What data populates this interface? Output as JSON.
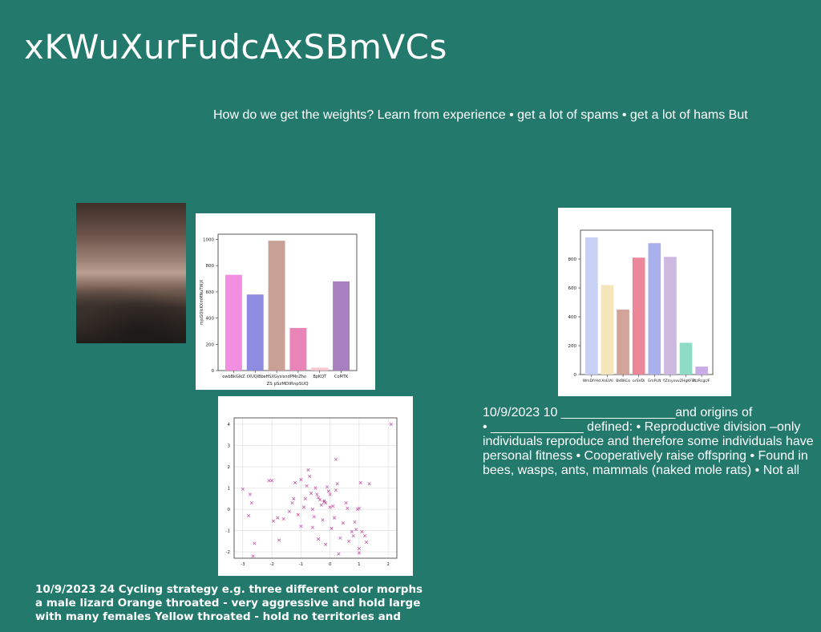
{
  "slide": {
    "title": "xKWuXurFudcAxSBmVCs",
    "subtitle": "How do we get the weights? Learn from experience • get a lot of spams • get a lot of hams But",
    "right_text": [
      "10/9/2023 10 ________________and origins of",
      "• _____________ defined: • Reproductive division –only",
      "individuals reproduce and therefore some individuals have",
      "personal fitness • Cooperatively raise offspring • Found in",
      "bees, wasps, ants, mammals (naked mole rats) • Not all"
    ],
    "bottom_text": [
      "10/9/2023 24 Cycling strategy e.g. three different color morphs",
      "a male lizard Orange throated - very aggressive and hold large",
      "with many females Yellow throated - hold no territories and"
    ]
  },
  "chart_data": [
    {
      "type": "bar",
      "categories": [
        "owbBkGikZ",
        "tXUQiBb",
        "eHSXGysisnd",
        "PMnZho",
        "BpKQT",
        "CoMTK"
      ],
      "values": [
        730,
        580,
        990,
        325,
        22,
        680
      ],
      "colors": [
        "#f28fe0",
        "#8e8be0",
        "#c9a095",
        "#e884b8",
        "#f6c7cf",
        "#a87fbf"
      ],
      "xlabel": "ZS pSzMDIRnpSUQ",
      "ylabel": "mjsGQIcKXmMNuTWjX",
      "ylim": [
        0,
        1040
      ],
      "yticks": [
        0,
        200,
        400,
        600,
        800,
        1000
      ],
      "grid": false
    },
    {
      "type": "bar",
      "categories": [
        "WmDfrHd",
        "XoEIAI",
        "BkBKCo",
        "orSVDi",
        "EmPLN",
        "YZmyov",
        "vZHgKFB",
        "NzRcgUF"
      ],
      "values": [
        950,
        620,
        450,
        810,
        910,
        815,
        220,
        55
      ],
      "colors": [
        "#c6d1f4",
        "#f4e5bb",
        "#d2a49a",
        "#ec8699",
        "#a9b0ec",
        "#cdb8e0",
        "#8fdcc6",
        "#c9abe5"
      ],
      "xlabel": "",
      "ylabel": "",
      "ylim": [
        0,
        1000
      ],
      "yticks": [
        0,
        200,
        400,
        600,
        800
      ],
      "grid": false
    },
    {
      "type": "scatter",
      "marker": "x",
      "color": "#c55aa9",
      "xlim": [
        -3.3,
        2.3
      ],
      "ylim": [
        -2.3,
        4.3
      ],
      "xticks": [
        -3,
        -2,
        -1,
        0,
        1,
        2
      ],
      "yticks": [
        -2,
        -1,
        0,
        1,
        2,
        3,
        4
      ],
      "grid": true,
      "points": [
        [
          -3.0,
          0.95
        ],
        [
          -2.7,
          0.3
        ],
        [
          -2.75,
          0.7
        ],
        [
          -2.8,
          -0.3
        ],
        [
          -2.6,
          -1.6
        ],
        [
          -2.65,
          -2.2
        ],
        [
          -2.1,
          1.35
        ],
        [
          -2.0,
          1.35
        ],
        [
          -1.95,
          -0.55
        ],
        [
          -1.8,
          -0.4
        ],
        [
          -1.6,
          -0.45
        ],
        [
          -1.75,
          -1.45
        ],
        [
          -1.4,
          -0.1
        ],
        [
          -1.3,
          0.3
        ],
        [
          -1.2,
          1.25
        ],
        [
          -1.25,
          0.5
        ],
        [
          -1.1,
          -0.25
        ],
        [
          -1.0,
          -0.8
        ],
        [
          -0.9,
          0.1
        ],
        [
          -0.85,
          0.5
        ],
        [
          -0.8,
          1.1
        ],
        [
          -0.75,
          1.85
        ],
        [
          -0.7,
          1.55
        ],
        [
          -0.6,
          0.0
        ],
        [
          -0.55,
          -0.35
        ],
        [
          -0.5,
          1.0
        ],
        [
          -0.45,
          0.7
        ],
        [
          -0.4,
          0.55
        ],
        [
          -0.35,
          0.45
        ],
        [
          -0.3,
          0.2
        ],
        [
          -0.25,
          -0.5
        ],
        [
          -0.2,
          0.35
        ],
        [
          -0.15,
          0.3
        ],
        [
          -0.1,
          1.05
        ],
        [
          -0.05,
          0.85
        ],
        [
          0.0,
          0.1
        ],
        [
          0.05,
          -0.9
        ],
        [
          0.1,
          0.15
        ],
        [
          0.15,
          -0.4
        ],
        [
          0.2,
          2.35
        ],
        [
          0.25,
          1.2
        ],
        [
          0.3,
          -2.1
        ],
        [
          0.35,
          -1.35
        ],
        [
          -0.4,
          -1.4
        ],
        [
          -0.6,
          -0.85
        ],
        [
          0.45,
          -0.65
        ],
        [
          0.55,
          0.3
        ],
        [
          0.6,
          0.05
        ],
        [
          0.65,
          -1.5
        ],
        [
          0.75,
          -1.05
        ],
        [
          0.8,
          -1.25
        ],
        [
          0.85,
          -0.6
        ],
        [
          0.9,
          -0.95
        ],
        [
          0.95,
          0.0
        ],
        [
          1.0,
          0.05
        ],
        [
          1.05,
          1.25
        ],
        [
          1.0,
          -1.85
        ],
        [
          1.1,
          -1.05
        ],
        [
          1.2,
          -1.25
        ],
        [
          1.25,
          -1.55
        ],
        [
          1.35,
          1.2
        ],
        [
          -1.0,
          1.4
        ],
        [
          -0.2,
          0.4
        ],
        [
          0.0,
          0.7
        ],
        [
          -0.65,
          0.75
        ],
        [
          2.1,
          4.0
        ],
        [
          -0.15,
          -1.65
        ],
        [
          1.0,
          -2.05
        ],
        [
          0.2,
          0.9
        ]
      ]
    }
  ]
}
